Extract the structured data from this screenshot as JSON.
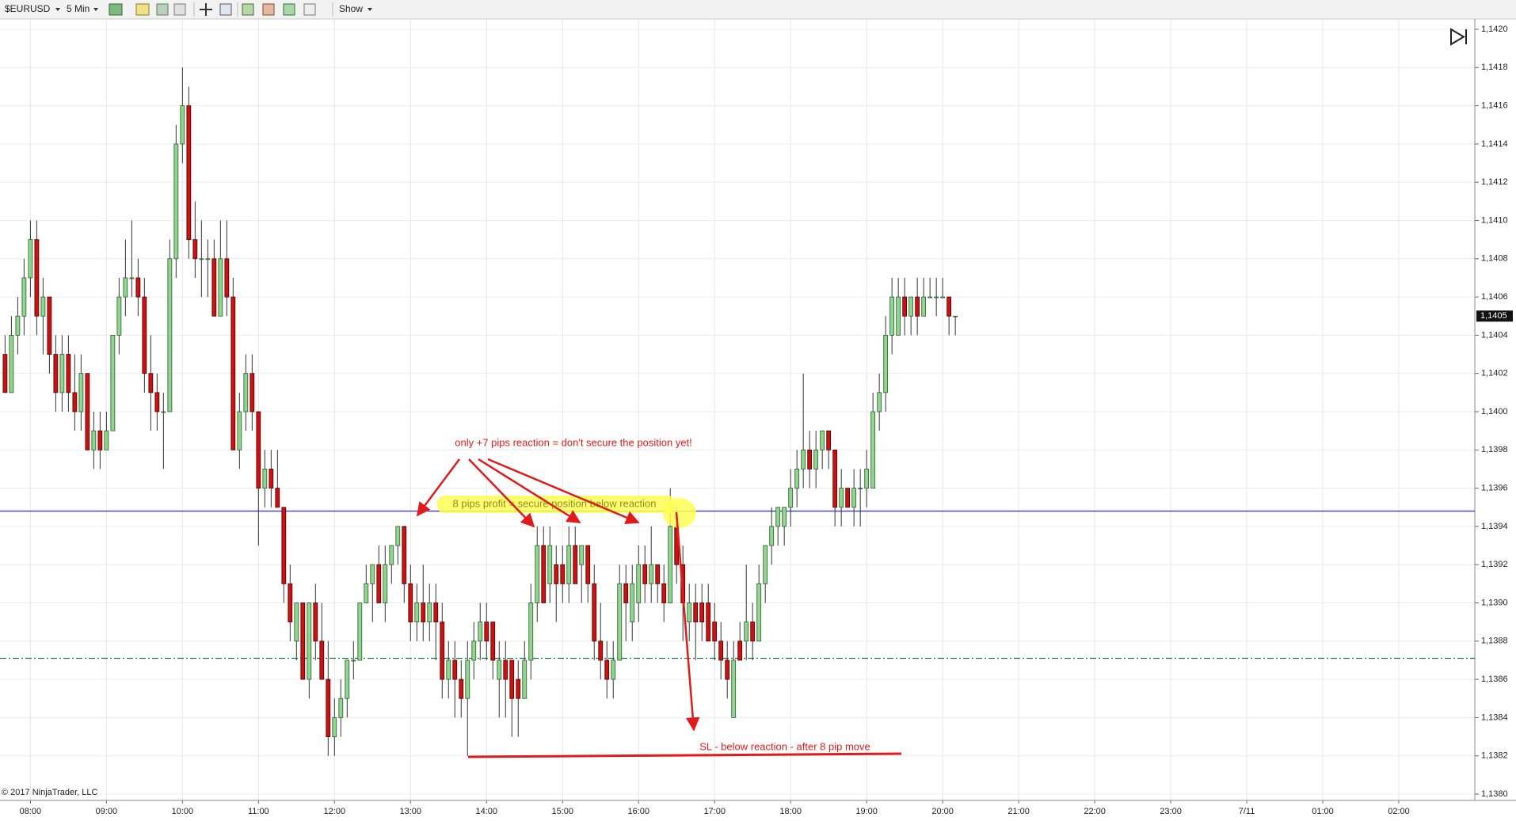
{
  "toolbar": {
    "instrument": "$EURUSD",
    "interval": "5 Min",
    "show": "Show"
  },
  "footer": "© 2017 NinjaTrader, LLC",
  "chart_data": {
    "type": "candlestick",
    "up_color": "#8fd68f",
    "down_color": "#cc1111",
    "grid": true,
    "x": [
      "07:40",
      "07:45",
      "07:50",
      "07:55",
      "08:00",
      "08:05",
      "08:10",
      "08:15",
      "08:20",
      "08:25",
      "08:30",
      "08:35",
      "08:40",
      "08:45",
      "08:50",
      "08:55",
      "09:00",
      "09:05",
      "09:10",
      "09:15",
      "09:20",
      "09:25",
      "09:30",
      "09:35",
      "09:40",
      "09:45",
      "09:50",
      "09:55",
      "10:00",
      "10:05",
      "10:10",
      "10:15",
      "10:20",
      "10:25",
      "10:30",
      "10:35",
      "10:40",
      "10:45",
      "10:50",
      "10:55",
      "11:00",
      "11:05",
      "11:10",
      "11:15",
      "11:20",
      "11:25",
      "11:30",
      "11:35",
      "11:40",
      "11:45",
      "11:50",
      "11:55",
      "12:00",
      "12:05",
      "12:10",
      "12:15",
      "12:20",
      "12:25",
      "12:30",
      "12:35",
      "12:40",
      "12:45",
      "12:50",
      "12:55",
      "13:00",
      "13:05",
      "13:10",
      "13:15",
      "13:20",
      "13:25",
      "13:30",
      "13:35",
      "13:40",
      "13:45",
      "13:50",
      "13:55",
      "14:00",
      "14:05",
      "14:10",
      "14:15",
      "14:20",
      "14:25",
      "14:30",
      "14:35",
      "14:40",
      "14:45",
      "14:50",
      "14:55",
      "15:00",
      "15:05",
      "15:10",
      "15:15",
      "15:20",
      "15:25",
      "15:30",
      "15:35",
      "15:40",
      "15:45",
      "15:50",
      "15:55",
      "16:00",
      "16:05",
      "16:10",
      "16:15",
      "16:20",
      "16:25",
      "16:30",
      "16:35",
      "16:40",
      "16:45",
      "16:50",
      "16:55",
      "17:00",
      "17:05",
      "17:10",
      "17:15",
      "17:20",
      "17:25",
      "17:30",
      "17:35",
      "17:40",
      "17:45",
      "17:50",
      "17:55",
      "18:00",
      "18:05",
      "18:10",
      "18:15",
      "18:20",
      "18:25",
      "18:30",
      "18:35",
      "18:40",
      "18:45",
      "18:50",
      "18:55",
      "19:00",
      "19:05",
      "19:10",
      "19:15",
      "19:20",
      "19:25",
      "19:30",
      "19:35",
      "19:40",
      "19:45",
      "19:50",
      "19:55",
      "20:00",
      "20:05",
      "20:10"
    ],
    "open": [
      1.1403,
      1.1401,
      1.1404,
      1.1405,
      1.1407,
      1.1409,
      1.1405,
      1.1406,
      1.1403,
      1.1401,
      1.1403,
      1.1401,
      1.14,
      1.1402,
      1.1398,
      1.1399,
      1.1398,
      1.1399,
      1.1404,
      1.1406,
      1.1407,
      1.1407,
      1.1406,
      1.1402,
      1.1401,
      1.14,
      1.14,
      1.1408,
      1.1414,
      1.1416,
      1.1409,
      1.1408,
      1.1408,
      1.1408,
      1.1405,
      1.1408,
      1.1406,
      1.1398,
      1.14,
      1.1402,
      1.14,
      1.1396,
      1.1397,
      1.1396,
      1.1395,
      1.1391,
      1.1388,
      1.139,
      1.1386,
      1.139,
      1.1388,
      1.1386,
      1.1383,
      1.1384,
      1.1385,
      1.1387,
      1.1387,
      1.139,
      1.1391,
      1.1392,
      1.139,
      1.1392,
      1.1393,
      1.1394,
      1.1391,
      1.1389,
      1.139,
      1.1389,
      1.139,
      1.1389,
      1.1386,
      1.1387,
      1.1386,
      1.1385,
      1.1387,
      1.1388,
      1.1389,
      1.1389,
      1.1386,
      1.1387,
      1.1387,
      1.1386,
      1.1385,
      1.1387,
      1.139,
      1.1393,
      1.1391,
      1.1392,
      1.1392,
      1.1391,
      1.1393,
      1.1392,
      1.1393,
      1.1391,
      1.1388,
      1.1387,
      1.1386,
      1.1387,
      1.1391,
      1.1389,
      1.139,
      1.1392,
      1.1391,
      1.1392,
      1.1391,
      1.139,
      1.1394,
      1.1392,
      1.1389,
      1.139,
      1.139,
      1.139,
      1.1389,
      1.1388,
      1.1387,
      1.1384,
      1.1388,
      1.1388,
      1.1389,
      1.1388,
      1.1391,
      1.1393,
      1.1394,
      1.1394,
      1.1395,
      1.1396,
      1.1397,
      1.1398,
      1.1397,
      1.1398,
      1.1399,
      1.1398,
      1.1395,
      1.1396,
      1.1395,
      1.1396,
      1.1396,
      1.1396,
      1.14,
      1.1401,
      1.1404,
      1.1404,
      1.1406,
      1.1405,
      1.1406,
      1.1405,
      1.1406,
      1.1406,
      1.1406,
      1.1406,
      1.1405
    ],
    "high": [
      1.1404,
      1.1405,
      1.1406,
      1.1408,
      1.141,
      1.141,
      1.1407,
      1.1406,
      1.1404,
      1.1404,
      1.1404,
      1.1403,
      1.1403,
      1.1402,
      1.14,
      1.14,
      1.14,
      1.1404,
      1.1407,
      1.1409,
      1.141,
      1.1408,
      1.1407,
      1.1404,
      1.1402,
      1.1401,
      1.1409,
      1.1415,
      1.1418,
      1.1417,
      1.1411,
      1.141,
      1.1409,
      1.1409,
      1.141,
      1.141,
      1.1407,
      1.1401,
      1.1403,
      1.1403,
      1.14,
      1.1398,
      1.1398,
      1.1398,
      1.1395,
      1.1392,
      1.139,
      1.139,
      1.139,
      1.1391,
      1.139,
      1.1388,
      1.1385,
      1.1386,
      1.1387,
      1.1388,
      1.139,
      1.1392,
      1.1392,
      1.1393,
      1.1393,
      1.1393,
      1.1394,
      1.1394,
      1.1392,
      1.1391,
      1.1392,
      1.1391,
      1.1391,
      1.139,
      1.1388,
      1.1388,
      1.1387,
      1.1388,
      1.1389,
      1.139,
      1.139,
      1.1389,
      1.1388,
      1.1388,
      1.1387,
      1.1387,
      1.1388,
      1.1391,
      1.1394,
      1.1394,
      1.1394,
      1.1393,
      1.1393,
      1.1394,
      1.1394,
      1.1393,
      1.1393,
      1.1392,
      1.139,
      1.1388,
      1.1388,
      1.1392,
      1.1392,
      1.1392,
      1.1393,
      1.1393,
      1.1394,
      1.1392,
      1.1392,
      1.1396,
      1.1395,
      1.1393,
      1.1391,
      1.1391,
      1.1391,
      1.1391,
      1.139,
      1.1389,
      1.1388,
      1.1388,
      1.1389,
      1.1392,
      1.139,
      1.1392,
      1.1393,
      1.1395,
      1.1395,
      1.1395,
      1.1397,
      1.1398,
      1.1402,
      1.1399,
      1.1399,
      1.1399,
      1.1399,
      1.1398,
      1.1397,
      1.1396,
      1.1397,
      1.1397,
      1.1398,
      1.1401,
      1.1402,
      1.1405,
      1.1407,
      1.1407,
      1.1407,
      1.1406,
      1.1407,
      1.1407,
      1.1407,
      1.1407,
      1.1407,
      1.1406,
      1.1405
    ],
    "low": [
      1.1401,
      1.1401,
      1.1403,
      1.1404,
      1.1406,
      1.1404,
      1.1403,
      1.1402,
      1.14,
      1.14,
      1.14,
      1.1399,
      1.1399,
      1.1398,
      1.1397,
      1.1397,
      1.1398,
      1.1399,
      1.1403,
      1.1405,
      1.1406,
      1.1405,
      1.1401,
      1.1399,
      1.1399,
      1.1397,
      1.14,
      1.1407,
      1.1413,
      1.1408,
      1.1407,
      1.1406,
      1.1406,
      1.1405,
      1.1405,
      1.1405,
      1.1398,
      1.1397,
      1.1399,
      1.1399,
      1.1393,
      1.1395,
      1.1395,
      1.1395,
      1.139,
      1.1388,
      1.1387,
      1.1386,
      1.1385,
      1.1387,
      1.1386,
      1.1382,
      1.1382,
      1.1383,
      1.1384,
      1.1386,
      1.1387,
      1.139,
      1.1389,
      1.139,
      1.1389,
      1.1391,
      1.1392,
      1.139,
      1.1388,
      1.1388,
      1.1388,
      1.1388,
      1.1387,
      1.1385,
      1.1385,
      1.1384,
      1.1384,
      1.1382,
      1.1386,
      1.1387,
      1.1387,
      1.1386,
      1.1384,
      1.1384,
      1.1383,
      1.1383,
      1.1385,
      1.1386,
      1.1389,
      1.139,
      1.139,
      1.1389,
      1.139,
      1.139,
      1.1391,
      1.139,
      1.139,
      1.1387,
      1.1386,
      1.1385,
      1.1385,
      1.1387,
      1.1388,
      1.1388,
      1.1389,
      1.139,
      1.139,
      1.139,
      1.1389,
      1.139,
      1.1391,
      1.1388,
      1.1388,
      1.1387,
      1.1388,
      1.1388,
      1.1387,
      1.1386,
      1.1385,
      1.1384,
      1.1387,
      1.1387,
      1.1387,
      1.1388,
      1.139,
      1.1392,
      1.1393,
      1.1393,
      1.1394,
      1.1395,
      1.1396,
      1.1396,
      1.1396,
      1.1397,
      1.1397,
      1.1394,
      1.1394,
      1.1395,
      1.1394,
      1.1394,
      1.1395,
      1.1396,
      1.1399,
      1.14,
      1.1403,
      1.1404,
      1.1404,
      1.1404,
      1.1404,
      1.1405,
      1.1406,
      1.1405,
      1.1406,
      1.1404,
      1.1404
    ],
    "close": [
      1.1401,
      1.1404,
      1.1405,
      1.1407,
      1.1409,
      1.1405,
      1.1406,
      1.1403,
      1.1401,
      1.1403,
      1.1401,
      1.14,
      1.1402,
      1.1398,
      1.1399,
      1.1398,
      1.1399,
      1.1404,
      1.1406,
      1.1407,
      1.1407,
      1.1406,
      1.1402,
      1.1401,
      1.14,
      1.14,
      1.1408,
      1.1414,
      1.1416,
      1.1409,
      1.1408,
      1.1408,
      1.1408,
      1.1405,
      1.1408,
      1.1406,
      1.1398,
      1.14,
      1.1402,
      1.14,
      1.1396,
      1.1397,
      1.1396,
      1.1395,
      1.1391,
      1.1389,
      1.139,
      1.1386,
      1.139,
      1.1388,
      1.1386,
      1.1383,
      1.1384,
      1.1385,
      1.1387,
      1.1387,
      1.139,
      1.1391,
      1.1392,
      1.139,
      1.1392,
      1.1393,
      1.1394,
      1.1391,
      1.1389,
      1.139,
      1.1389,
      1.139,
      1.1389,
      1.1386,
      1.1387,
      1.1386,
      1.1385,
      1.1387,
      1.1388,
      1.1389,
      1.1388,
      1.1387,
      1.1387,
      1.1386,
      1.1385,
      1.1385,
      1.1387,
      1.139,
      1.1393,
      1.139,
      1.1393,
      1.1391,
      1.1391,
      1.1393,
      1.1391,
      1.1393,
      1.1391,
      1.1388,
      1.1387,
      1.1386,
      1.1387,
      1.1391,
      1.139,
      1.1391,
      1.1392,
      1.1391,
      1.1392,
      1.1391,
      1.139,
      1.1394,
      1.1392,
      1.139,
      1.139,
      1.1389,
      1.1389,
      1.1388,
      1.1388,
      1.1387,
      1.1386,
      1.1387,
      1.1387,
      1.1389,
      1.1388,
      1.1391,
      1.1393,
      1.1394,
      1.1395,
      1.1395,
      1.1396,
      1.1397,
      1.1398,
      1.1397,
      1.1398,
      1.1399,
      1.1398,
      1.1395,
      1.1396,
      1.1395,
      1.1396,
      1.1396,
      1.1397,
      1.14,
      1.1401,
      1.1404,
      1.1406,
      1.1406,
      1.1405,
      1.1406,
      1.1405,
      1.1406,
      1.1406,
      1.1406,
      1.1406,
      1.1405,
      1.1405
    ],
    "xlim": [
      "07:36",
      "03:00"
    ],
    "xticks": [
      "08:00",
      "09:00",
      "10:00",
      "11:00",
      "12:00",
      "13:00",
      "14:00",
      "15:00",
      "16:00",
      "17:00",
      "18:00",
      "19:00",
      "20:00",
      "21:00",
      "22:00",
      "23:00",
      {
        "value": "00:00",
        "label": "7/11"
      },
      "01:00",
      "02:00"
    ],
    "ylim": [
      1.138,
      1.142
    ],
    "yticks": [
      {
        "value": 1.138,
        "label": "1,1380"
      },
      {
        "value": 1.1382,
        "label": "1,1382"
      },
      {
        "value": 1.1384,
        "label": "1,1384"
      },
      {
        "value": 1.1386,
        "label": "1,1386"
      },
      {
        "value": 1.1388,
        "label": "1,1388"
      },
      {
        "value": 1.139,
        "label": "1,1390"
      },
      {
        "value": 1.1392,
        "label": "1,1392"
      },
      {
        "value": 1.1394,
        "label": "1,1394"
      },
      {
        "value": 1.1396,
        "label": "1,1396"
      },
      {
        "value": 1.1398,
        "label": "1,1398"
      },
      {
        "value": 1.14,
        "label": "1,1400"
      },
      {
        "value": 1.1402,
        "label": "1,1402"
      },
      {
        "value": 1.1404,
        "label": "1,1404"
      },
      {
        "value": 1.1406,
        "label": "1,1406"
      },
      {
        "value": 1.1408,
        "label": "1,1408"
      },
      {
        "value": 1.141,
        "label": "1,1410"
      },
      {
        "value": 1.1412,
        "label": "1,1412"
      },
      {
        "value": 1.1414,
        "label": "1,1414"
      },
      {
        "value": 1.1416,
        "label": "1,1416"
      },
      {
        "value": 1.1418,
        "label": "1,1418"
      },
      {
        "value": 1.142,
        "label": "1,1420"
      }
    ],
    "last_price": {
      "value": 1.1405,
      "label": "1,1405"
    },
    "hlines": [
      {
        "value": 1.13948,
        "color": "#3c3cc8",
        "dash": false
      },
      {
        "value": 1.13871,
        "color": "#1e7a3c",
        "dash": true
      }
    ],
    "annotations": [
      "only +7 pips reaction = don't secure the position yet!",
      "8 pips profit = secure position below reaction",
      "SL - below reaction - after 8 pip move"
    ]
  }
}
